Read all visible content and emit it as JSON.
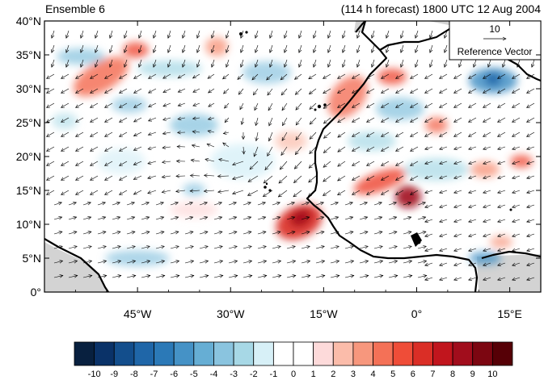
{
  "title_left": "Ensemble 6",
  "title_right": "(114 h forecast) 1800 UTC 12 Aug 2004",
  "map": {
    "lon_range": [
      -60,
      20
    ],
    "lat_range": [
      0,
      40
    ],
    "lat_ticks": [
      "0°",
      "5°N",
      "10°N",
      "15°N",
      "20°N",
      "25°N",
      "30°N",
      "35°N",
      "40°N"
    ],
    "lon_ticks": [
      "45°W",
      "30°W",
      "15°W",
      "0°",
      "15°E"
    ]
  },
  "reference_vector": {
    "value": "10",
    "label": "Reference Vector"
  },
  "colorbar": {
    "labels": [
      "-10",
      "-9",
      "-8",
      "-7",
      "-6",
      "-5",
      "-4",
      "-3",
      "-2",
      "-1",
      "0",
      "1",
      "2",
      "3",
      "4",
      "5",
      "6",
      "7",
      "8",
      "9",
      "10"
    ],
    "colors": [
      "#08203f",
      "#0a3268",
      "#134e8c",
      "#1f66a8",
      "#2b79b7",
      "#4592c6",
      "#66aed4",
      "#8ac4df",
      "#a7d8e6",
      "#d7f0f7",
      "#ffffff",
      "#ffffff",
      "#fddada",
      "#fbbcaa",
      "#f7977d",
      "#f47157",
      "#ef4d38",
      "#da2e26",
      "#c1151d",
      "#a10d1c",
      "#7c0611",
      "#560006"
    ]
  },
  "colors": {
    "land_gray": "#d3d3d3",
    "coast": "#000000",
    "vector": "#000000"
  }
}
